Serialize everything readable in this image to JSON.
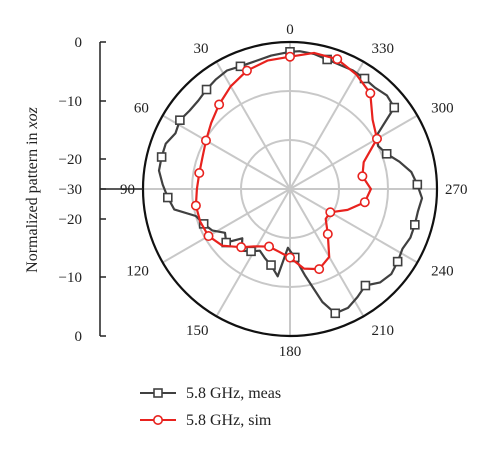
{
  "chart_data": {
    "type": "line",
    "subtype": "polar",
    "ylabel_main": "Normalized pattern in ",
    "ylabel_italic": "xoz",
    "radial_ticks": [
      "0",
      "−10",
      "−20",
      "−30",
      "−20",
      "−10",
      "0"
    ],
    "angle_labels": [
      "0",
      "30",
      "60",
      "90",
      "120",
      "150",
      "180",
      "210",
      "240",
      "270",
      "300",
      "330"
    ],
    "radial_range": [
      -30,
      0
    ],
    "angle_direction": "counterclockwise from top",
    "grid": true,
    "legend_position": "bottom",
    "colors": {
      "meas": "#404040",
      "sim": "#e8221e",
      "grid": "#c8c8c8"
    },
    "series": [
      {
        "name": "5.8 GHz, meas",
        "marker": "square",
        "angles": [
          0,
          8,
          16,
          22,
          28,
          34,
          40,
          46,
          52,
          58,
          64,
          70,
          76,
          82,
          88,
          94,
          100,
          106,
          112,
          118,
          124,
          130,
          136,
          142,
          148,
          154,
          160,
          166,
          172,
          178,
          184,
          190,
          196,
          200,
          206,
          212,
          218,
          224,
          230,
          236,
          242,
          248,
          254,
          260,
          266,
          272,
          278,
          284,
          290,
          296,
          302,
          308,
          314,
          320,
          326,
          332,
          338,
          344,
          350,
          356
        ],
        "values": [
          -2,
          -2.5,
          -3,
          -3,
          -2.6,
          -3,
          -3.5,
          -4,
          -4,
          -3.5,
          -4,
          -3,
          -3,
          -3,
          -4,
          -5,
          -6,
          -10,
          -11,
          -12,
          -14,
          -13,
          -16,
          -14,
          -15,
          -16,
          -15,
          -14,
          -12,
          -18,
          -16,
          -12,
          -6,
          -3,
          -3,
          -4,
          -5,
          -3.5,
          -3,
          -3.5,
          -4,
          -3.5,
          -3.5,
          -3.5,
          -3,
          -4,
          -5,
          -7,
          -9,
          -10,
          -9,
          -3,
          -2.5,
          -3,
          -2.8,
          -2.6,
          -2.7,
          -2.5,
          -2,
          -1.8
        ],
        "markers_at": [
          0,
          22,
          40,
          58,
          76,
          94,
          112,
          130,
          148,
          166,
          184,
          200,
          218,
          236,
          254,
          272,
          290,
          308,
          326,
          344
        ]
      },
      {
        "name": "5.8 GHz, sim",
        "marker": "circle",
        "angles": [
          0,
          10,
          20,
          30,
          40,
          50,
          60,
          70,
          80,
          90,
          100,
          110,
          120,
          130,
          140,
          150,
          160,
          170,
          180,
          190,
          200,
          210,
          220,
          230,
          240,
          250,
          260,
          270,
          280,
          290,
          300,
          310,
          320,
          330,
          340,
          350
        ],
        "values": [
          -3,
          -3.4,
          -4.3,
          -5.8,
          -7.5,
          -9,
          -10.2,
          -11,
          -11.2,
          -11,
          -10.5,
          -10.5,
          -10.8,
          -12,
          -14.5,
          -16.5,
          -17.5,
          -17,
          -16,
          -13.5,
          -12.6,
          -14,
          -18,
          -20.5,
          -20.5,
          -17.5,
          -14.5,
          -13.5,
          -15,
          -14,
          -9.5,
          -8,
          -4.5,
          -3,
          -1.8,
          -1.8
        ],
        "markers_at": [
          0,
          20,
          40,
          60,
          80,
          100,
          120,
          140,
          160,
          180,
          200,
          220,
          240,
          260,
          280,
          300,
          320,
          340
        ]
      }
    ]
  }
}
